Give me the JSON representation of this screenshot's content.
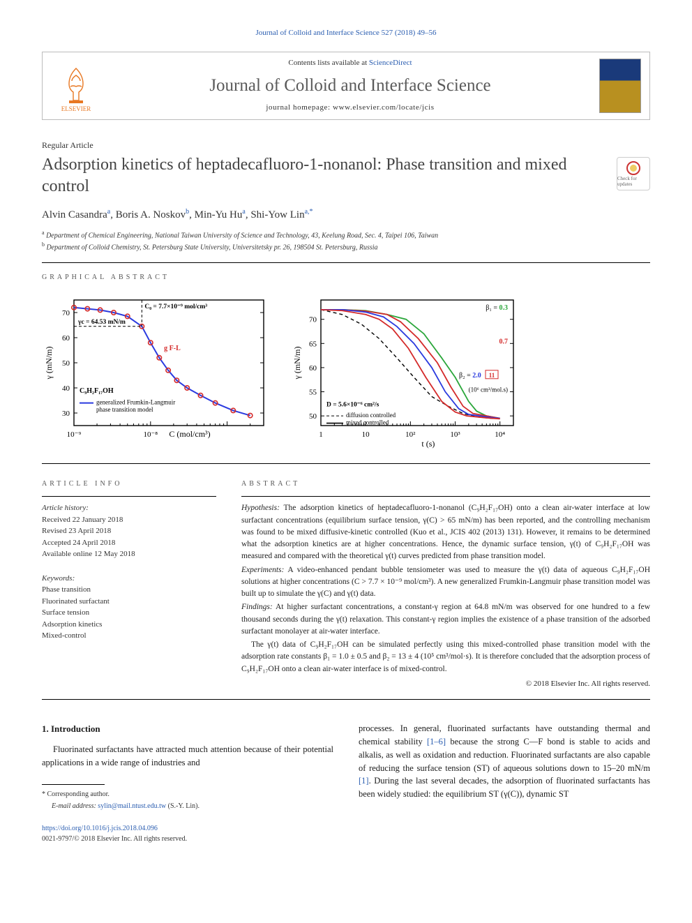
{
  "top_ref": "Journal of Colloid and Interface Science 527 (2018) 49–56",
  "header": {
    "contents_prefix": "Contents lists available at ",
    "contents_link": "ScienceDirect",
    "journal_title": "Journal of Colloid and Interface Science",
    "homepage_prefix": "journal homepage: ",
    "homepage_url": "www.elsevier.com/locate/jcis",
    "publisher_name": "ELSEVIER"
  },
  "article": {
    "type": "Regular Article",
    "title": "Adsorption kinetics of heptadecafluoro-1-nonanol: Phase transition and mixed control",
    "check_for_updates": "Check for updates",
    "authors_html": "Alvin Casandra",
    "a1_name": "Alvin Casandra",
    "a1_sup": "a",
    "a2_name": ", Boris A. Noskov",
    "a2_sup": "b",
    "a3_name": ", Min-Yu Hu",
    "a3_sup": "a",
    "a4_name": ", Shi-Yow Lin",
    "a4_sup": "a,*",
    "affil_a_sup": "a",
    "affil_a": " Department of Chemical Engineering, National Taiwan University of Science and Technology, 43, Keelung Road, Sec. 4, Taipei 106, Taiwan",
    "affil_b_sup": "b",
    "affil_b": " Department of Colloid Chemistry, St. Petersburg State University, Universitetsky pr. 26, 198504 St. Petersburg, Russia"
  },
  "sections": {
    "graphical_abstract": "graphical abstract",
    "article_info": "article info",
    "abstract": "abstract"
  },
  "chart_left": {
    "type": "line-scatter",
    "title_formula": "C₉H₂F₁₇OH",
    "legend1": "generalized Frumkin-Langmuir",
    "legend2": "phase transition model",
    "xlabel": "C (mol/cm³)",
    "ylabel": "γ (mN/m)",
    "xlim": [
      1e-09,
      3e-07
    ],
    "ylim": [
      25,
      75
    ],
    "ytick_labels": [
      "30",
      "40",
      "50",
      "60",
      "70"
    ],
    "ytick_vals": [
      30,
      40,
      50,
      60,
      70
    ],
    "xtick_labels": [
      "10⁻⁹",
      "10⁻⁸"
    ],
    "xtick_vals": [
      1e-09,
      1e-08
    ],
    "annotation_c0": "C₀ = 7.7×10⁻⁹ mol/cm³",
    "annotation_gamma": "γc = 64.53 mN/m",
    "annotation_gfl": "g F-L",
    "data_points_x": [
      1e-09,
      1.5e-09,
      2.2e-09,
      3.3e-09,
      5e-09,
      7.7e-09,
      1e-08,
      1.3e-08,
      1.7e-08,
      2.2e-08,
      3e-08,
      4.5e-08,
      7e-08,
      1.2e-07,
      2e-07
    ],
    "data_points_y": [
      72,
      71.5,
      71,
      70,
      68.5,
      64.5,
      58,
      52,
      47,
      43,
      40,
      37,
      34,
      31,
      29
    ],
    "marker_color": "#d42a2a",
    "line_color": "#2a3adf",
    "line_width": 2,
    "background": "#ffffff",
    "axis_color": "#000000",
    "tick_fontsize": 11,
    "label_fontsize": 12
  },
  "chart_right": {
    "type": "line-multi",
    "xlabel": "t (s)",
    "ylabel": "γ (mN/m)",
    "xlim": [
      1,
      20000
    ],
    "ylim": [
      48,
      74
    ],
    "ytick_labels": [
      "50",
      "55",
      "60",
      "65",
      "70"
    ],
    "ytick_vals": [
      50,
      55,
      60,
      65,
      70
    ],
    "xtick_labels": [
      "1",
      "10",
      "10²",
      "10³",
      "10⁴"
    ],
    "xtick_vals": [
      1,
      10,
      100,
      1000,
      10000
    ],
    "beta_values": [
      "0.3",
      "0.7",
      "2.0",
      "11"
    ],
    "beta_colors": [
      "#2aa63a",
      "#d42a2a",
      "#2a3adf",
      "#d42a2a"
    ],
    "beta_unit": "(10⁶ cm³/mol.s)",
    "annotation_d": "D = 5.6×10⁻⁶ cm²/s",
    "legend_dashed": "diffusion controlled",
    "legend_solid": "mixed controlled",
    "background": "#ffffff",
    "axis_color": "#000000",
    "series": [
      {
        "label": "β₁=0.3",
        "color": "#2aa63a",
        "x": [
          1,
          3,
          10,
          30,
          80,
          200,
          500,
          1000,
          2000,
          3000,
          5000,
          10000
        ],
        "y": [
          72,
          72,
          71.8,
          71,
          70,
          67,
          62,
          58,
          53,
          51,
          50,
          49.5
        ]
      },
      {
        "label": "β₁=0.7",
        "color": "#d42a2a",
        "x": [
          1,
          3,
          10,
          30,
          60,
          150,
          400,
          800,
          1500,
          2500,
          5000,
          10000
        ],
        "y": [
          72,
          72,
          71.7,
          71,
          69.5,
          66,
          61,
          56,
          52,
          50.5,
          50,
          49.5
        ]
      },
      {
        "label": "β₁=2.0",
        "color": "#2a3adf",
        "x": [
          1,
          3,
          10,
          25,
          50,
          120,
          300,
          600,
          1200,
          2000,
          5000,
          10000
        ],
        "y": [
          72,
          72,
          71.5,
          70.5,
          68.5,
          65,
          60,
          55,
          51.5,
          50.3,
          49.8,
          49.5
        ]
      },
      {
        "label": "β₁=11",
        "color": "#d42a2a",
        "x": [
          1,
          3,
          10,
          20,
          40,
          90,
          220,
          500,
          1000,
          1800,
          5000,
          10000
        ],
        "y": [
          72,
          71.8,
          71,
          70,
          68,
          64,
          58,
          53,
          50.8,
          50,
          49.6,
          49.4
        ]
      }
    ],
    "dashed": {
      "color": "#000000",
      "x": [
        1,
        3,
        8,
        20,
        50,
        120,
        300,
        700,
        1500,
        3000,
        8000
      ],
      "y": [
        72,
        71,
        69,
        66,
        62,
        58,
        54,
        52,
        50.5,
        49.8,
        49.4
      ]
    }
  },
  "article_info": {
    "history_label": "Article history:",
    "received": "Received 22 January 2018",
    "revised": "Revised 23 April 2018",
    "accepted": "Accepted 24 April 2018",
    "online": "Available online 12 May 2018",
    "keywords_label": "Keywords:",
    "kw1": "Phase transition",
    "kw2": "Fluorinated surfactant",
    "kw3": "Surface tension",
    "kw4": "Adsorption kinetics",
    "kw5": "Mixed-control"
  },
  "abstract": {
    "hyp_label": "Hypothesis:",
    "hyp_text": " The adsorption kinetics of heptadecafluoro-1-nonanol (C₉H₂F₁₇OH) onto a clean air-water interface at low surfactant concentrations (equilibrium surface tension, γ(C) > 65 mN/m) has been reported, and the controlling mechanism was found to be mixed diffusive-kinetic controlled (Kuo et al., JCIS 402 (2013) 131). However, it remains to be determined what the adsorption kinetics are at higher concentrations. Hence, the dynamic surface tension, γ(t) of C₉H₂F₁₇OH was measured and compared with the theoretical γ(t) curves predicted from phase transition model.",
    "exp_label": "Experiments:",
    "exp_text": " A video-enhanced pendant bubble tensiometer was used to measure the γ(t) data of aqueous C₉H₂F₁₇OH solutions at higher concentrations (C > 7.7 × 10⁻⁹ mol/cm³). A new generalized Frumkin-Langmuir phase transition model was built up to simulate the γ(C) and γ(t) data.",
    "find_label": "Findings:",
    "find_text": " At higher surfactant concentrations, a constant-γ region at 64.8 mN/m was observed for one hundred to a few thousand seconds during the γ(t) relaxation. This constant-γ region implies the existence of a phase transition of the adsorbed surfactant monolayer at air-water interface.",
    "para2": "The γ(t) data of C₉H₂F₁₇OH can be simulated perfectly using this mixed-controlled phase transition model with the adsorption rate constants β₁ = 1.0 ± 0.5 and β₂ = 13 ± 4 (10⁵ cm³/mol·s). It is therefore concluded that the adsorption process of C₉H₂F₁₇OH onto a clean air-water interface is of mixed-control.",
    "copyright": "© 2018 Elsevier Inc. All rights reserved."
  },
  "intro": {
    "heading": "1. Introduction",
    "left_text": "Fluorinated surfactants have attracted much attention because of their potential applications in a wide range of industries and",
    "right_text_1": "processes. In general, fluorinated surfactants have outstanding thermal and chemical stability ",
    "right_ref1": "[1–6]",
    "right_text_2": " because the strong C—F bond is stable to acids and alkalis, as well as oxidation and reduction. Fluorinated surfactants are also capable of reducing the surface tension (ST) of aqueous solutions down to 15–20 mN/m ",
    "right_ref2": "[1]",
    "right_text_3": ". During the last several decades, the adsorption of fluorinated surfactants has been widely studied: the equilibrium ST (γ(C)), dynamic ST"
  },
  "footer": {
    "corr_label": "* Corresponding author.",
    "email_label": "E-mail address: ",
    "email": "sylin@mail.ntust.edu.tw",
    "email_suffix": " (S.-Y. Lin).",
    "doi": "https://doi.org/10.1016/j.jcis.2018.04.096",
    "issn": "0021-9797/© 2018 Elsevier Inc. All rights reserved."
  }
}
